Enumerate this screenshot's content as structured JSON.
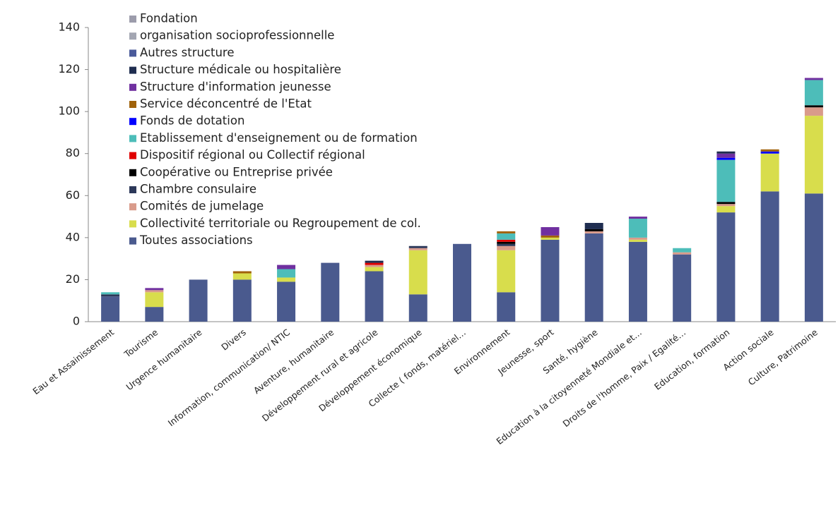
{
  "chart_data": {
    "type": "bar",
    "stacked": true,
    "categories": [
      "Eau et Assainissement",
      "Tourisme",
      "Urgence humanitaire",
      "Divers",
      "Information, communication/ NTIC",
      "Aventure, humanitaire",
      "Développement rural et agricole",
      "Développement économique",
      "Collecte ( fonds, matériel…",
      "Environnement",
      "Jeunesse, sport",
      "Santé, hygiène",
      "Education à la citoyenneté Mondiale et…",
      "Droits de l'homme, Paix /  Egalité…",
      "Education, formation",
      "Action sociale",
      "Culture, Patrimoine"
    ],
    "series": [
      {
        "name": "Toutes associations",
        "color": "#4a5a8e",
        "values": [
          12,
          7,
          20,
          20,
          19,
          28,
          24,
          13,
          37,
          14,
          39,
          42,
          38,
          32,
          52,
          62,
          61
        ]
      },
      {
        "name": "Collectivité territoriale ou Regroupement de col.",
        "color": "#d8dd4c",
        "values": [
          0,
          7,
          0,
          3,
          2,
          0,
          2,
          21,
          0,
          20,
          1,
          0,
          1,
          0,
          3,
          18,
          37
        ]
      },
      {
        "name": "Comités de jumelage",
        "color": "#d99b8b",
        "values": [
          0,
          1,
          0,
          0,
          0,
          0,
          1,
          1,
          0,
          2,
          0,
          1,
          1,
          1,
          1,
          0,
          4
        ]
      },
      {
        "name": "Chambre consulaire",
        "color": "#2c3859",
        "values": [
          1,
          0,
          0,
          0,
          0,
          0,
          0,
          1,
          0,
          1,
          0,
          0,
          0,
          0,
          0,
          0,
          0
        ]
      },
      {
        "name": "Coopérative ou Entreprise privée",
        "color": "#000000",
        "values": [
          0,
          0,
          0,
          0,
          0,
          0,
          0,
          0,
          0,
          1,
          0,
          1,
          0,
          0,
          1,
          0,
          1
        ]
      },
      {
        "name": "Dispositif régional ou Collectif régional",
        "color": "#e00000",
        "values": [
          0,
          0,
          0,
          0,
          0,
          0,
          1,
          0,
          0,
          1,
          0,
          0,
          0,
          0,
          0,
          0,
          0
        ]
      },
      {
        "name": "Etablissement d'enseignement ou de formation",
        "color": "#4dbdb9",
        "values": [
          1,
          0,
          0,
          0,
          4,
          0,
          0,
          0,
          0,
          3,
          0,
          0,
          9,
          2,
          20,
          0,
          12
        ]
      },
      {
        "name": "Fonds de dotation",
        "color": "#0000ff",
        "values": [
          0,
          0,
          0,
          0,
          0,
          0,
          0,
          0,
          0,
          0,
          0,
          0,
          0,
          0,
          1,
          1,
          0
        ]
      },
      {
        "name": "Service déconcentré de l'Etat",
        "color": "#a0620a",
        "values": [
          0,
          0,
          0,
          1,
          0,
          0,
          0,
          0,
          0,
          1,
          1,
          0,
          0,
          0,
          0,
          1,
          0
        ]
      },
      {
        "name": "Structure d'information jeunesse",
        "color": "#7030a0",
        "values": [
          0,
          1,
          0,
          0,
          2,
          0,
          0,
          0,
          0,
          0,
          4,
          0,
          1,
          0,
          2,
          0,
          1
        ]
      },
      {
        "name": "Structure médicale ou hospitalière",
        "color": "#1f2d50",
        "values": [
          0,
          0,
          0,
          0,
          0,
          0,
          1,
          0,
          0,
          0,
          0,
          3,
          0,
          0,
          1,
          0,
          0
        ]
      },
      {
        "name": "Autres structure",
        "color": "#4a5a9a",
        "values": [
          0,
          0,
          0,
          0,
          0,
          0,
          0,
          0,
          0,
          0,
          0,
          0,
          0,
          0,
          0,
          0,
          0
        ]
      },
      {
        "name": "organisation socioprofessionnelle",
        "color": "#a3a6b2",
        "values": [
          0,
          0,
          0,
          0,
          0,
          0,
          0,
          0,
          0,
          0,
          0,
          0,
          0,
          0,
          0,
          0,
          0
        ]
      },
      {
        "name": "Fondation",
        "color": "#9c9cab",
        "values": [
          0,
          0,
          0,
          0,
          0,
          0,
          0,
          0,
          0,
          0,
          0,
          0,
          0,
          0,
          0,
          0,
          0
        ]
      }
    ],
    "ylim": [
      0,
      140
    ],
    "yticks": [
      0,
      20,
      40,
      60,
      80,
      100,
      120,
      140
    ],
    "grid": false,
    "legend": "top-left"
  }
}
